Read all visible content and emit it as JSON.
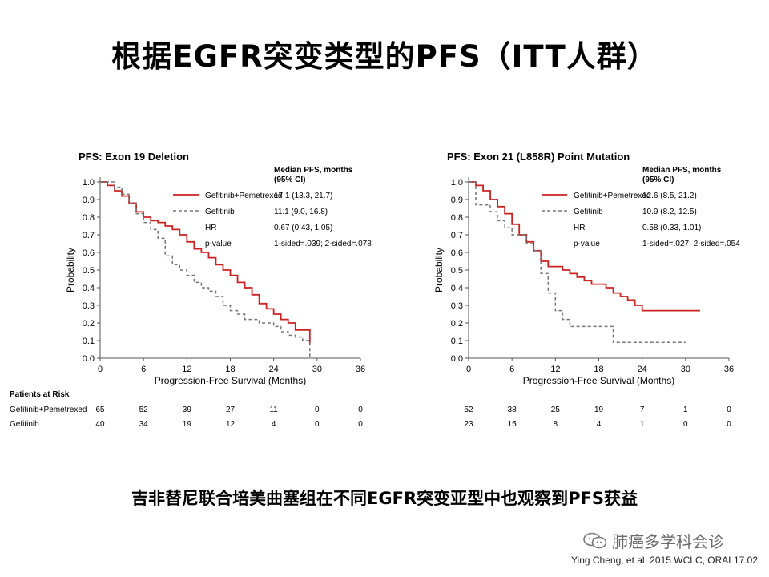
{
  "slide": {
    "title": "根据EGFR突变类型的PFS（ITT人群）",
    "conclusion": "吉非替尼联合培美曲塞组在不同EGFR突变亚型中也观察到PFS获益",
    "watermark": "肺癌多学科会诊",
    "citation": "Ying Cheng, et al. 2015 WCLC, ORAL17.02"
  },
  "risk_table": {
    "title": "Patients at Risk",
    "row_labels": [
      "Gefitinib+Pemetrexed",
      "Gefitinib"
    ],
    "left": {
      "rows": [
        [
          65,
          52,
          39,
          27,
          11,
          0,
          0
        ],
        [
          40,
          34,
          19,
          12,
          4,
          0,
          0
        ]
      ]
    },
    "right": {
      "rows": [
        [
          52,
          38,
          25,
          19,
          7,
          1,
          0
        ],
        [
          23,
          15,
          8,
          4,
          1,
          0,
          0
        ]
      ]
    }
  },
  "chart_data": [
    {
      "type": "line",
      "panel": "left",
      "title": "PFS: Exon 19 Deletion",
      "xlabel": "Progression-Free Survival (Months)",
      "ylabel": "Probability",
      "xlim": [
        0,
        36
      ],
      "ylim": [
        0,
        1.0
      ],
      "xticks": [
        0,
        6,
        12,
        18,
        24,
        30,
        36
      ],
      "yticks": [
        0.0,
        0.1,
        0.2,
        0.3,
        0.4,
        0.5,
        0.6,
        0.7,
        0.8,
        0.9,
        1.0
      ],
      "ytick_labels": [
        "0.0",
        "0.1",
        "0.2",
        "0.3",
        "0.4",
        "0.5",
        "0.6",
        "0.7",
        "0.8",
        "0.9",
        "1.0"
      ],
      "legend_header": "Median PFS, months (95% CI)",
      "legend": [
        {
          "label": "Gefitinib+Pemetrexed",
          "value": "17.1 (13.3, 21.7)",
          "style": "solid"
        },
        {
          "label": "Gefitinib",
          "value": "11.1 (9.0, 16.8)",
          "style": "dashed"
        },
        {
          "label": "HR",
          "value": "0.67 (0.43, 1.05)",
          "style": "none"
        },
        {
          "label": "p-value",
          "value": "1-sided=.039; 2-sided=.078",
          "style": "none"
        }
      ],
      "series": [
        {
          "name": "Gefitinib+Pemetrexed",
          "color": "#cc2222",
          "style": "solid",
          "x": [
            0,
            1,
            2,
            3,
            4,
            5,
            6,
            7,
            8,
            9,
            10,
            11,
            12,
            13,
            14,
            15,
            16,
            17,
            18,
            19,
            20,
            21,
            22,
            23,
            24,
            25,
            26,
            27,
            28,
            29
          ],
          "y": [
            1.0,
            0.98,
            0.95,
            0.92,
            0.88,
            0.83,
            0.8,
            0.78,
            0.77,
            0.75,
            0.73,
            0.7,
            0.66,
            0.62,
            0.6,
            0.57,
            0.53,
            0.5,
            0.47,
            0.43,
            0.4,
            0.36,
            0.31,
            0.28,
            0.25,
            0.22,
            0.2,
            0.16,
            0.16,
            0.08
          ]
        },
        {
          "name": "Gefitinib",
          "color": "#777777",
          "style": "dashed",
          "x": [
            0,
            2,
            3,
            4,
            5,
            6,
            7,
            8,
            9,
            10,
            11,
            12,
            13,
            14,
            15,
            16,
            17,
            18,
            19,
            20,
            21,
            22,
            23,
            24,
            25,
            26,
            27,
            28,
            29
          ],
          "y": [
            1.0,
            0.97,
            0.93,
            0.88,
            0.82,
            0.77,
            0.73,
            0.68,
            0.58,
            0.53,
            0.5,
            0.47,
            0.43,
            0.4,
            0.38,
            0.35,
            0.3,
            0.27,
            0.25,
            0.22,
            0.22,
            0.2,
            0.2,
            0.18,
            0.15,
            0.13,
            0.12,
            0.1,
            0.0
          ]
        }
      ]
    },
    {
      "type": "line",
      "panel": "right",
      "title": "PFS: Exon 21 (L858R) Point Mutation",
      "xlabel": "Progression-Free Survival (Months)",
      "ylabel": "Probability",
      "xlim": [
        0,
        36
      ],
      "ylim": [
        0,
        1.0
      ],
      "xticks": [
        0,
        6,
        12,
        18,
        24,
        30,
        36
      ],
      "yticks": [
        0.0,
        0.1,
        0.2,
        0.3,
        0.4,
        0.5,
        0.6,
        0.7,
        0.8,
        0.9,
        1.0
      ],
      "ytick_labels": [
        "0.0",
        "0.1",
        "0.2",
        "0.3",
        "0.4",
        "0.5",
        "0.6",
        "0.7",
        "0.8",
        "0.9",
        "1.0"
      ],
      "legend_header": "Median PFS, months (95% CI)",
      "legend": [
        {
          "label": "Gefitinib+Pemetrexed",
          "value": "12.6 (8.5, 21.2)",
          "style": "solid"
        },
        {
          "label": "Gefitinib",
          "value": "10.9 (8.2, 12.5)",
          "style": "dashed"
        },
        {
          "label": "HR",
          "value": "0.58 (0.33, 1.01)",
          "style": "none"
        },
        {
          "label": "p-value",
          "value": "1-sided=.027; 2-sided=.054",
          "style": "none"
        }
      ],
      "series": [
        {
          "name": "Gefitinib+Pemetrexed",
          "color": "#cc2222",
          "style": "solid",
          "x": [
            0,
            1,
            2,
            3,
            4,
            5,
            6,
            7,
            8,
            9,
            10,
            11,
            12,
            13,
            14,
            15,
            16,
            17,
            18,
            19,
            20,
            21,
            22,
            23,
            24,
            27,
            30,
            32
          ],
          "y": [
            1.0,
            0.98,
            0.95,
            0.9,
            0.86,
            0.82,
            0.76,
            0.7,
            0.66,
            0.61,
            0.55,
            0.52,
            0.52,
            0.5,
            0.48,
            0.46,
            0.44,
            0.42,
            0.42,
            0.4,
            0.37,
            0.35,
            0.33,
            0.3,
            0.27,
            0.27,
            0.27,
            0.27
          ]
        },
        {
          "name": "Gefitinib",
          "color": "#777777",
          "style": "dashed",
          "x": [
            0,
            1,
            2,
            3,
            4,
            5,
            6,
            7,
            8,
            9,
            10,
            11,
            12,
            13,
            14,
            16,
            18,
            20,
            22,
            24,
            28,
            30
          ],
          "y": [
            1.0,
            0.87,
            0.87,
            0.83,
            0.78,
            0.74,
            0.7,
            0.7,
            0.65,
            0.61,
            0.48,
            0.37,
            0.27,
            0.22,
            0.18,
            0.18,
            0.18,
            0.09,
            0.09,
            0.09,
            0.09,
            0.09
          ]
        }
      ]
    }
  ]
}
